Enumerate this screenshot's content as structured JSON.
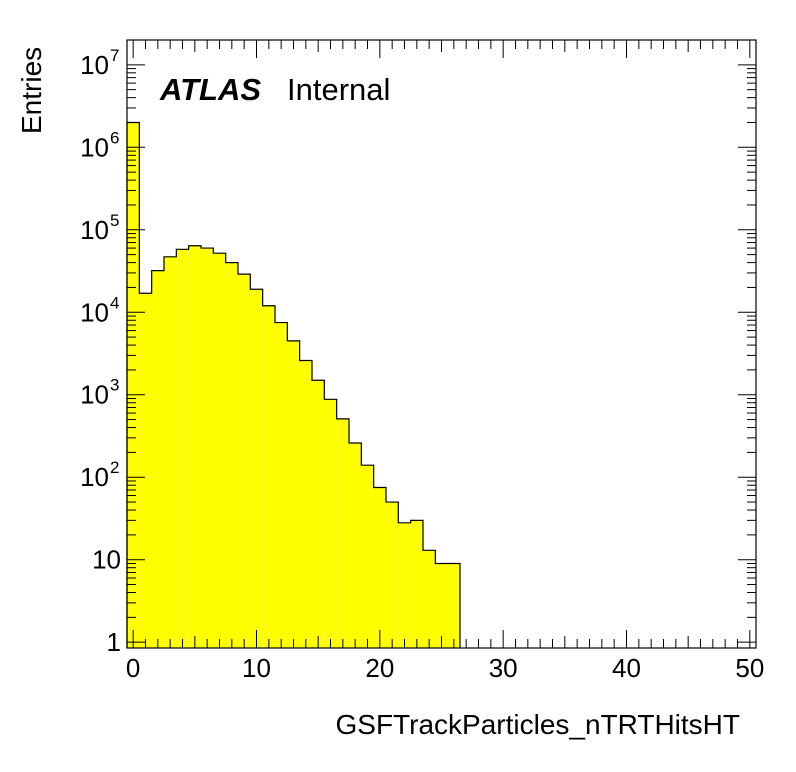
{
  "chart_data": {
    "type": "histogram",
    "title": "",
    "xlabel": "GSFTrackParticles_nTRTHitsHT",
    "ylabel": "Entries",
    "xlim": [
      -0.5,
      50.5
    ],
    "ylim": [
      0.85,
      20000000
    ],
    "y_scale": "log",
    "grid": false,
    "legend": "none",
    "bar_color": "#ffff00",
    "line_color": "#000000",
    "label_main": "ATLAS",
    "label_sub": "Internal",
    "x_ticks": [
      "0",
      "10",
      "20",
      "30",
      "40",
      "50"
    ],
    "x_tick_values": [
      0,
      10,
      20,
      30,
      40,
      50
    ],
    "y_ticks": [
      {
        "value": 1,
        "base": "1",
        "exp": ""
      },
      {
        "value": 10,
        "base": "10",
        "exp": ""
      },
      {
        "value": 100,
        "base": "10",
        "exp": "2"
      },
      {
        "value": 1000,
        "base": "10",
        "exp": "3"
      },
      {
        "value": 10000,
        "base": "10",
        "exp": "4"
      },
      {
        "value": 100000,
        "base": "10",
        "exp": "5"
      },
      {
        "value": 1000000,
        "base": "10",
        "exp": "6"
      },
      {
        "value": 10000000,
        "base": "10",
        "exp": "7"
      }
    ],
    "bins": [
      {
        "x": 0,
        "value": 2000000
      },
      {
        "x": 1,
        "value": 17000
      },
      {
        "x": 2,
        "value": 32000
      },
      {
        "x": 3,
        "value": 47000
      },
      {
        "x": 4,
        "value": 58000
      },
      {
        "x": 5,
        "value": 64000
      },
      {
        "x": 6,
        "value": 60000
      },
      {
        "x": 7,
        "value": 52000
      },
      {
        "x": 8,
        "value": 40000
      },
      {
        "x": 9,
        "value": 29000
      },
      {
        "x": 10,
        "value": 19000
      },
      {
        "x": 11,
        "value": 12000
      },
      {
        "x": 12,
        "value": 7500
      },
      {
        "x": 13,
        "value": 4500
      },
      {
        "x": 14,
        "value": 2600
      },
      {
        "x": 15,
        "value": 1500
      },
      {
        "x": 16,
        "value": 880
      },
      {
        "x": 17,
        "value": 510
      },
      {
        "x": 18,
        "value": 260
      },
      {
        "x": 19,
        "value": 140
      },
      {
        "x": 20,
        "value": 75
      },
      {
        "x": 21,
        "value": 50
      },
      {
        "x": 22,
        "value": 28
      },
      {
        "x": 23,
        "value": 30
      },
      {
        "x": 24,
        "value": 13
      },
      {
        "x": 25,
        "value": 9
      },
      {
        "x": 26,
        "value": 9
      }
    ]
  }
}
